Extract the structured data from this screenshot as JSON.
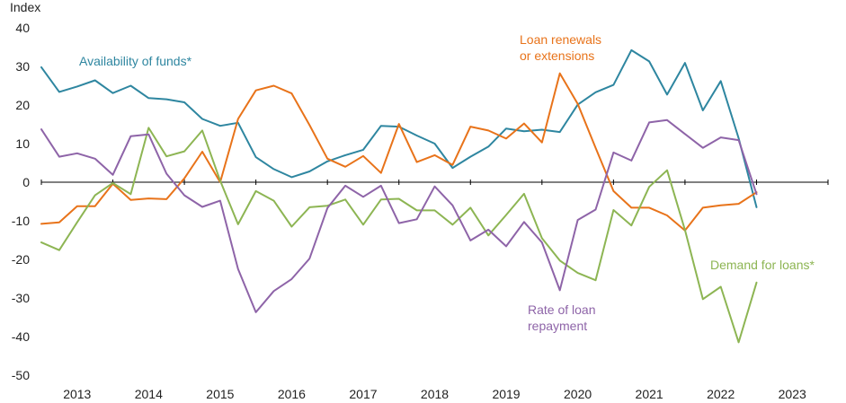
{
  "chart_data": {
    "type": "line",
    "title": "",
    "ylabel": "Index",
    "xlabel": "",
    "ylim": [
      -50,
      40
    ],
    "yticks": [
      40,
      30,
      20,
      10,
      0,
      -10,
      -20,
      -30,
      -40,
      -50
    ],
    "x_start": 2012.5,
    "x_end": 2023.5,
    "year_labels": [
      "2013",
      "2014",
      "2015",
      "2016",
      "2017",
      "2018",
      "2019",
      "2020",
      "2021",
      "2022",
      "2023"
    ],
    "x": [
      2012.5,
      2012.75,
      2013.0,
      2013.25,
      2013.5,
      2013.75,
      2014.0,
      2014.25,
      2014.5,
      2014.75,
      2015.0,
      2015.25,
      2015.5,
      2015.75,
      2016.0,
      2016.25,
      2016.5,
      2016.75,
      2017.0,
      2017.25,
      2017.5,
      2017.75,
      2018.0,
      2018.25,
      2018.5,
      2018.75,
      2019.0,
      2019.25,
      2019.5,
      2019.75,
      2020.0,
      2020.25,
      2020.5,
      2020.75,
      2021.0,
      2021.25,
      2021.5,
      2021.75,
      2022.0,
      2022.25,
      2022.5
    ],
    "series": [
      {
        "name": "Availability of funds*",
        "label_lines": [
          "Availability of funds*"
        ],
        "color": "#2e86a0",
        "values": [
          29.8,
          23.4,
          24.8,
          26.4,
          23.1,
          25.0,
          21.8,
          21.5,
          20.7,
          16.4,
          14.6,
          15.4,
          6.5,
          3.4,
          1.3,
          2.8,
          5.4,
          7.0,
          8.4,
          14.6,
          14.4,
          12.1,
          10.0,
          3.7,
          6.6,
          9.2,
          13.9,
          13.2,
          13.6,
          13.0,
          20.1,
          23.3,
          25.2,
          34.2,
          31.3,
          22.7,
          30.9,
          18.6,
          26.2,
          11.4,
          -6.5
        ]
      },
      {
        "name": "Loan renewals or extensions",
        "label_lines": [
          "Loan renewals",
          "or extensions"
        ],
        "color": "#e8731a",
        "values": [
          -10.8,
          -10.4,
          -6.2,
          -6.2,
          -0.4,
          -4.6,
          -4.2,
          -4.4,
          1.0,
          7.9,
          0.0,
          16.4,
          23.8,
          25.0,
          23.0,
          14.8,
          6.1,
          4.0,
          6.8,
          2.4,
          15.1,
          5.2,
          7.0,
          4.5,
          14.4,
          13.4,
          11.3,
          15.2,
          10.3,
          28.2,
          20.3,
          8.9,
          -2.3,
          -6.6,
          -6.6,
          -8.6,
          -12.5,
          -6.6,
          -6.0,
          -5.6,
          -2.6
        ]
      },
      {
        "name": "Demand for loans*",
        "label_lines": [
          "Demand for loans*"
        ],
        "color": "#8db553",
        "values": [
          -15.6,
          -17.6,
          -10.4,
          -3.4,
          -0.2,
          -3.1,
          14.1,
          6.7,
          8.0,
          13.4,
          0.4,
          -10.9,
          -2.3,
          -4.8,
          -11.5,
          -6.5,
          -6.1,
          -4.5,
          -11.0,
          -4.5,
          -4.3,
          -7.3,
          -7.3,
          -11.0,
          -6.6,
          -13.8,
          -8.5,
          -3.0,
          -14.5,
          -20.3,
          -23.5,
          -25.4,
          -7.2,
          -11.2,
          -1.2,
          3.1,
          -12.4,
          -30.3,
          -27.1,
          -41.5,
          -26.0
        ]
      },
      {
        "name": "Rate of loan repayment",
        "label_lines": [
          "Rate of loan",
          "repayment"
        ],
        "color": "#8e64a8",
        "values": [
          13.7,
          6.6,
          7.5,
          6.1,
          1.9,
          11.9,
          12.4,
          2.2,
          -3.4,
          -6.4,
          -4.8,
          -22.5,
          -33.7,
          -28.2,
          -25.1,
          -19.8,
          -6.7,
          -0.9,
          -3.8,
          -0.9,
          -10.6,
          -9.6,
          -1.1,
          -6.0,
          -15.1,
          -12.3,
          -16.6,
          -10.3,
          -15.6,
          -28.0,
          -9.8,
          -7.1,
          7.7,
          5.6,
          15.5,
          16.1,
          12.5,
          8.9,
          11.6,
          10.9,
          -3.1
        ]
      }
    ]
  }
}
